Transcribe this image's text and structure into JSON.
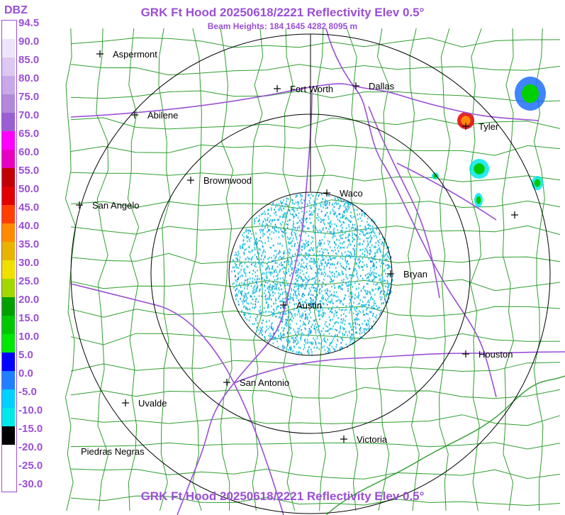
{
  "title": "GRK Ft Hood 20250618/2221 Reflectivity Elev 0.5°",
  "subtitle": "Beam Heights: 184 1645 4282 8095 m",
  "footer": "GRK Ft Hood 20250618/2221 Reflectivity Elev 0.5°",
  "legend": {
    "title": "DBZ",
    "labels": [
      "94.5",
      "90.0",
      "85.0",
      "80.0",
      "75.0",
      "70.0",
      "65.0",
      "60.0",
      "55.0",
      "50.0",
      "45.0",
      "40.0",
      "35.0",
      "30.0",
      "25.0",
      "20.0",
      "15.0",
      "10.0",
      "5.0",
      "0.0",
      "-5.0",
      "-10.0",
      "-15.0",
      "-20.0",
      "-25.0",
      "-30.0"
    ],
    "colors": [
      "#fefefe",
      "#eee6f8",
      "#dcc8f0",
      "#c8a8e8",
      "#b08ad8",
      "#9a5fd0",
      "#ff00ff",
      "#e800c0",
      "#c00000",
      "#e00000",
      "#ff4000",
      "#ff8c00",
      "#e8b400",
      "#f0e000",
      "#a0d800",
      "#00a000",
      "#00c800",
      "#00e800",
      "#0000ff",
      "#2080ff",
      "#00d0ff",
      "#00e8e8",
      "#000000",
      "#ffffff",
      "#ffffff",
      "#ffffff"
    ]
  },
  "map": {
    "colors": {
      "county": "#2e9e2e",
      "highway": "#9a4fd6",
      "range_ring": "#000000",
      "echo": "#33c8e8"
    },
    "cities": [
      "Aspermont",
      "Abilene",
      "Fort Worth",
      "Dallas",
      "Tyler",
      "Brownwood",
      "Waco",
      "San Angelo",
      "Bryan",
      "Austin",
      "Houston",
      "San Antonio",
      "Uvalde",
      "Victoria",
      "Piedras Negras"
    ]
  }
}
